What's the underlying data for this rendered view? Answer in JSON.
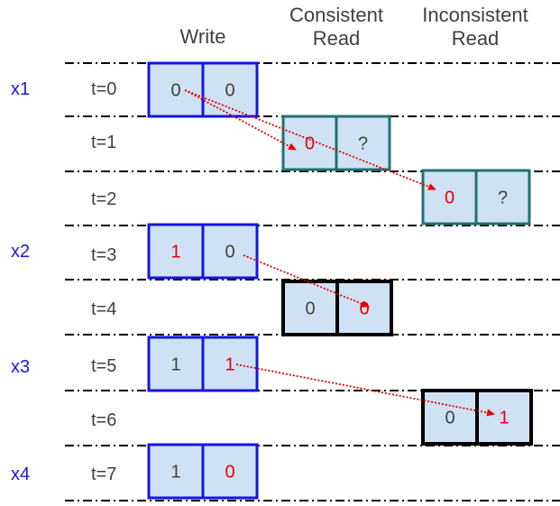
{
  "columns": {
    "write": "Write",
    "consistent": [
      "Consistent",
      "Read"
    ],
    "inconsistent": [
      "Inconsistent",
      "Read"
    ]
  },
  "colors": {
    "write_border": "#1414e6",
    "read_border_teal": "#1f7272",
    "read_border_black": "#000000",
    "cell_fill": "#cfe2f3",
    "value_gray": "#404040",
    "value_red": "#e60000",
    "op_blue": "#1a1adb",
    "arrow_red": "#e60000"
  },
  "ops": [
    "x1",
    "x2",
    "x3",
    "x4"
  ],
  "rows": [
    "t=0",
    "t=1",
    "t=2",
    "t=3",
    "t=4",
    "t=5",
    "t=6",
    "t=7"
  ],
  "boxes": [
    {
      "name": "write-t0",
      "kind": "write",
      "cells": [
        {
          "v": "0",
          "red": false
        },
        {
          "v": "0",
          "red": false
        }
      ]
    },
    {
      "name": "consistent-read-t1",
      "kind": "read-teal",
      "cells": [
        {
          "v": "0",
          "red": true
        },
        {
          "v": "?",
          "red": false
        }
      ]
    },
    {
      "name": "inconsistent-read-t2",
      "kind": "read-teal",
      "cells": [
        {
          "v": "0",
          "red": true
        },
        {
          "v": "?",
          "red": false
        }
      ]
    },
    {
      "name": "write-t3",
      "kind": "write",
      "cells": [
        {
          "v": "1",
          "red": true
        },
        {
          "v": "0",
          "red": false
        }
      ]
    },
    {
      "name": "consistent-read-t4",
      "kind": "read-black",
      "cells": [
        {
          "v": "0",
          "red": false
        },
        {
          "v": "0",
          "red": true
        }
      ]
    },
    {
      "name": "write-t5",
      "kind": "write",
      "cells": [
        {
          "v": "1",
          "red": false
        },
        {
          "v": "1",
          "red": true
        }
      ]
    },
    {
      "name": "inconsistent-read-t6",
      "kind": "read-black",
      "cells": [
        {
          "v": "0",
          "red": false
        },
        {
          "v": "1",
          "red": true
        }
      ]
    },
    {
      "name": "write-t7",
      "kind": "write",
      "cells": [
        {
          "v": "1",
          "red": false
        },
        {
          "v": "0",
          "red": true
        }
      ]
    }
  ],
  "arrows": [
    {
      "name": "arrow-t0-to-t1"
    },
    {
      "name": "arrow-t0-to-t2"
    },
    {
      "name": "arrow-t3-to-t4"
    },
    {
      "name": "arrow-t5-to-t6"
    }
  ]
}
